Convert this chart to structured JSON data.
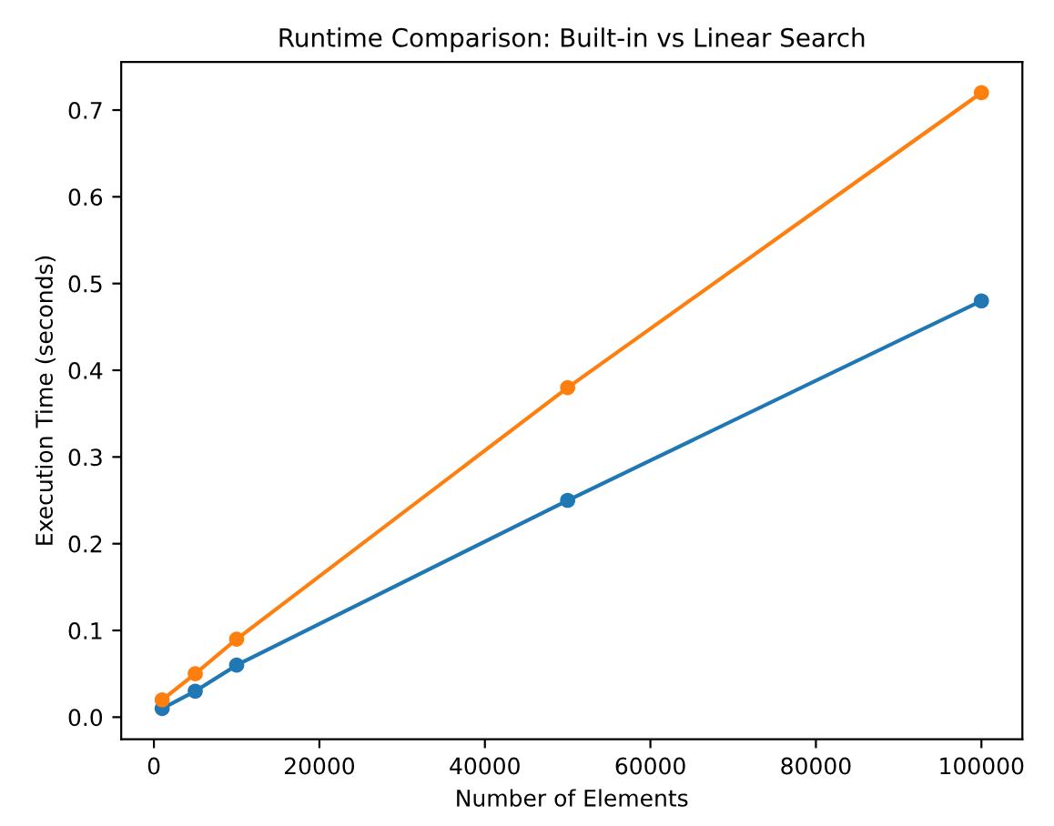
{
  "chart_data": {
    "type": "line",
    "title": "Runtime Comparison: Built-in vs Linear Search",
    "xlabel": "Number of Elements",
    "ylabel": "Execution Time (seconds)",
    "x": [
      1000,
      5000,
      10000,
      50000,
      100000
    ],
    "series": [
      {
        "color": "#1f77b4",
        "values": [
          0.01,
          0.03,
          0.06,
          0.25,
          0.48
        ]
      },
      {
        "color": "#ff7f0e",
        "values": [
          0.02,
          0.05,
          0.09,
          0.38,
          0.72
        ]
      }
    ],
    "xlim": [
      -3950,
      104950
    ],
    "ylim": [
      -0.0255,
      0.7555
    ],
    "xticks": [
      0,
      20000,
      40000,
      60000,
      80000,
      100000
    ],
    "yticks": [
      {
        "value": 0,
        "label": "0.0"
      },
      0.1,
      0.2,
      0.3,
      0.4,
      0.5,
      0.6,
      0.7
    ],
    "marker": "circle",
    "line_style": "solid"
  }
}
